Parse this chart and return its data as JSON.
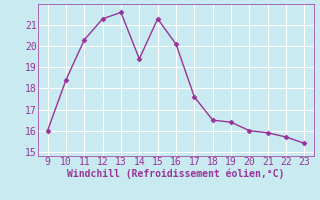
{
  "x": [
    9,
    10,
    11,
    12,
    13,
    14,
    15,
    16,
    17,
    18,
    19,
    20,
    21,
    22,
    23
  ],
  "y": [
    16.0,
    18.4,
    20.3,
    21.3,
    21.6,
    19.4,
    21.3,
    20.1,
    17.6,
    16.5,
    16.4,
    16.0,
    15.9,
    15.7,
    15.4
  ],
  "line_color": "#993399",
  "marker": "D",
  "marker_size": 2.5,
  "xlabel": "Windchill (Refroidissement éolien,°C)",
  "xlim": [
    8.5,
    23.5
  ],
  "ylim": [
    14.8,
    22.0
  ],
  "xticks": [
    9,
    10,
    11,
    12,
    13,
    14,
    15,
    16,
    17,
    18,
    19,
    20,
    21,
    22,
    23
  ],
  "yticks": [
    15,
    16,
    17,
    18,
    19,
    20,
    21
  ],
  "background_color": "#c8eaf0",
  "grid_color": "#ffffff",
  "xlabel_color": "#993399",
  "tick_color": "#993399",
  "label_fontsize": 7,
  "tick_fontsize": 7,
  "linewidth": 1.0
}
